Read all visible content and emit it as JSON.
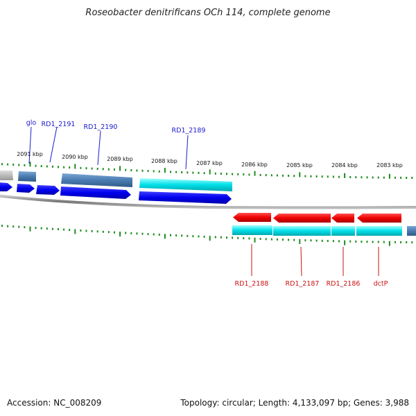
{
  "title": "Roseobacter denitrificans OCh 114, complete genome",
  "footer": {
    "accession": "Accession: NC_008209",
    "summary": "Topology: circular; Length: 4,133,097 bp; Genes: 3,988"
  },
  "scale_labels": [
    "2091 kbp",
    "2090 kbp",
    "2089 kbp",
    "2088 kbp",
    "2087 kbp",
    "2086 kbp",
    "2085 kbp",
    "2084 kbp",
    "2083 kbp"
  ],
  "genes_top": [
    {
      "name": "glo"
    },
    {
      "name": "RD1_2191"
    },
    {
      "name": "RD1_2190"
    },
    {
      "name": "RD1_2189"
    }
  ],
  "genes_bottom": [
    {
      "name": "RD1_2188"
    },
    {
      "name": "RD1_2187"
    },
    {
      "name": "RD1_2186"
    },
    {
      "name": "dctP"
    }
  ],
  "colors": {
    "forward_cds": "#0000ee",
    "reverse_cds": "#ee0000",
    "gene_steel": "#4a7bb0",
    "gene_cyan": "#00e0e8",
    "gene_gray": "#aaaaaa",
    "tick_green": "#1e8a1e",
    "backbone": "#888888",
    "label_blue": "#1a1acc",
    "label_red": "#cc1111"
  }
}
